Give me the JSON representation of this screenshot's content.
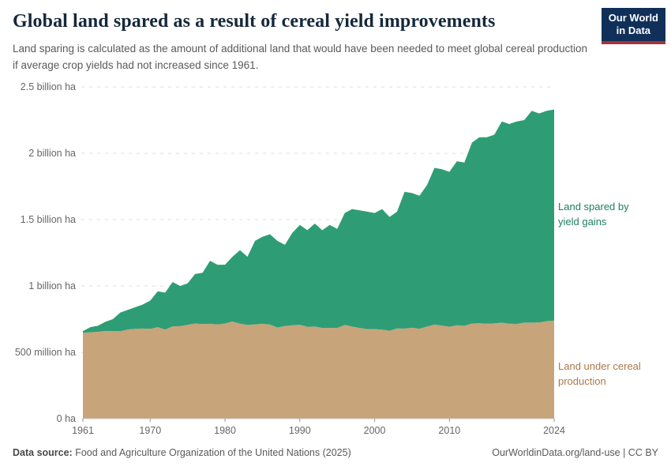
{
  "header": {
    "title": "Global land spared as a result of cereal yield improvements",
    "subtitle": "Land sparing is calculated as the amount of additional land that would have been needed to meet global cereal production if average crop yields had not increased since 1961.",
    "logo_line1": "Our World",
    "logo_line2": "in Data"
  },
  "annotations": {
    "spared_label": "Land spared by\nyield gains",
    "under_label": "Land under cereal\nproduction"
  },
  "footer": {
    "source_label": "Data source:",
    "source_text": "Food and Agriculture Organization of the United Nations (2025)",
    "link_text": "OurWorldinData.org/land-use | CC BY"
  },
  "colors": {
    "area_spared": "#2e9d76",
    "area_under": "#c7a47a",
    "label_spared": "#1e7d63",
    "label_under": "#aa794a",
    "gridline": "#dcdcdc",
    "axis_line": "#cccccc",
    "tick": "#999999",
    "logo_bg": "#103059",
    "logo_accent": "#a8323c"
  },
  "chart_data": {
    "type": "area",
    "stacked": true,
    "title": "Global land spared as a result of cereal yield improvements",
    "unit": "billion ha",
    "xlim": [
      1961,
      2024
    ],
    "ylim": [
      0,
      2.5
    ],
    "grid": "dashed-horizontal",
    "legend_position": "right-annotations",
    "x": [
      1961,
      1962,
      1963,
      1964,
      1965,
      1966,
      1967,
      1968,
      1969,
      1970,
      1971,
      1972,
      1973,
      1974,
      1975,
      1976,
      1977,
      1978,
      1979,
      1980,
      1981,
      1982,
      1983,
      1984,
      1985,
      1986,
      1987,
      1988,
      1989,
      1990,
      1991,
      1992,
      1993,
      1994,
      1995,
      1996,
      1997,
      1998,
      1999,
      2000,
      2001,
      2002,
      2003,
      2004,
      2005,
      2006,
      2007,
      2008,
      2009,
      2010,
      2011,
      2012,
      2013,
      2014,
      2015,
      2016,
      2017,
      2018,
      2019,
      2020,
      2021,
      2022,
      2023,
      2024
    ],
    "series": [
      {
        "name": "Land under cereal production",
        "color": "#c7a47a",
        "values": [
          0.648,
          0.651,
          0.655,
          0.661,
          0.659,
          0.659,
          0.672,
          0.677,
          0.679,
          0.677,
          0.69,
          0.672,
          0.696,
          0.697,
          0.708,
          0.717,
          0.713,
          0.715,
          0.71,
          0.717,
          0.732,
          0.716,
          0.707,
          0.711,
          0.715,
          0.71,
          0.687,
          0.699,
          0.704,
          0.708,
          0.693,
          0.694,
          0.684,
          0.684,
          0.684,
          0.707,
          0.694,
          0.684,
          0.675,
          0.675,
          0.671,
          0.663,
          0.68,
          0.679,
          0.685,
          0.678,
          0.694,
          0.709,
          0.702,
          0.693,
          0.704,
          0.7,
          0.717,
          0.719,
          0.716,
          0.718,
          0.724,
          0.716,
          0.714,
          0.724,
          0.724,
          0.725,
          0.735,
          0.74
        ]
      },
      {
        "name": "Land spared by yield gains",
        "color": "#2e9d76",
        "values": [
          0.012,
          0.039,
          0.045,
          0.069,
          0.091,
          0.141,
          0.148,
          0.163,
          0.181,
          0.213,
          0.27,
          0.278,
          0.334,
          0.303,
          0.312,
          0.373,
          0.387,
          0.475,
          0.45,
          0.443,
          0.488,
          0.554,
          0.513,
          0.629,
          0.655,
          0.68,
          0.653,
          0.611,
          0.696,
          0.752,
          0.727,
          0.776,
          0.736,
          0.776,
          0.746,
          0.843,
          0.886,
          0.886,
          0.885,
          0.875,
          0.909,
          0.857,
          0.88,
          1.031,
          1.015,
          1.002,
          1.066,
          1.181,
          1.178,
          1.167,
          1.236,
          1.23,
          1.363,
          1.401,
          1.404,
          1.422,
          1.516,
          1.504,
          1.526,
          1.526,
          1.596,
          1.575,
          1.585,
          1.59
        ]
      }
    ],
    "y_ticks": [
      {
        "value": 0,
        "label": "0 ha"
      },
      {
        "value": 0.5,
        "label": "500 million ha"
      },
      {
        "value": 1,
        "label": "1 billion ha"
      },
      {
        "value": 1.5,
        "label": "1.5 billion ha"
      },
      {
        "value": 2,
        "label": "2 billion ha"
      },
      {
        "value": 2.5,
        "label": "2.5 billion ha"
      }
    ],
    "x_ticks": [
      1961,
      1970,
      1980,
      1990,
      2000,
      2010,
      2024
    ]
  }
}
